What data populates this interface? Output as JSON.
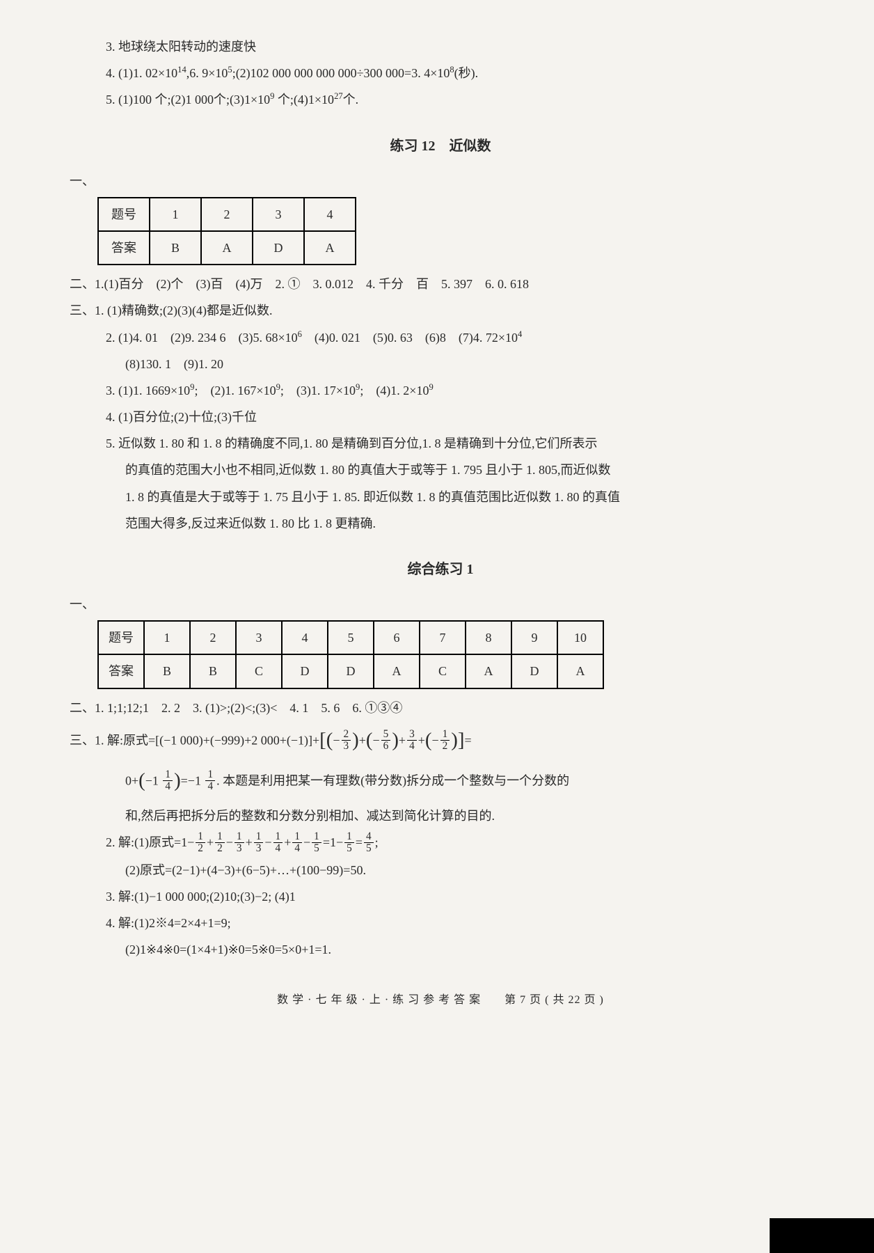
{
  "top": {
    "line3": "3. 地球绕太阳转动的速度快",
    "line4_a": "4.  (1)1. 02×10",
    "line4_b": ",6. 9×10",
    "line4_c": ";(2)102 000 000 000 000÷300 000=3. 4×10",
    "line4_d": "(秒).",
    "line5_a": "5. (1)100 个;(2)1 000个;(3)1×10",
    "line5_b": " 个;(4)1×10",
    "line5_c": "个.",
    "exp14": "14",
    "exp5": "5",
    "exp8": "8",
    "exp9": "9",
    "exp27": "27"
  },
  "sec12": {
    "title": "练习 12　近似数",
    "one": "一、",
    "table_header": "题号",
    "nums": [
      "1",
      "2",
      "3",
      "4"
    ],
    "ans_label": "答案",
    "answers": [
      "B",
      "A",
      "D",
      "A"
    ],
    "two": "二、1.(1)百分　(2)个　(3)百　(4)万　2. ①　3. 0.012　4. 千分　百　5. 397　6. 0. 618",
    "three1": "三、1. (1)精确数;(2)(3)(4)都是近似数.",
    "three2a": "2. (1)4. 01　(2)9. 234 6　(3)5. 68×10",
    "three2b": "　(4)0. 021　(5)0. 63　(6)8　(7)4. 72×10",
    "exp6": "6",
    "exp4": "4",
    "three2c": "   (8)130. 1　(9)1. 20",
    "three3a": "3. (1)1. 1669×10",
    "three3b": ";　(2)1. 167×10",
    "three3c": ";　(3)1. 17×10",
    "three3d": ";　(4)1. 2×10",
    "exp9": "9",
    "three4": "4. (1)百分位;(2)十位;(3)千位",
    "three5a": "5. 近似数 1. 80 和 1. 8 的精确度不同,1. 80 是精确到百分位,1. 8 是精确到十分位,它们所表示",
    "three5b": "的真值的范围大小也不相同,近似数 1. 80 的真值大于或等于 1. 795 且小于 1. 805,而近似数",
    "three5c": "1. 8 的真值是大于或等于 1. 75 且小于 1. 85. 即近似数 1. 8 的真值范围比近似数 1. 80 的真值",
    "three5d": "范围大得多,反过来近似数 1. 80 比 1. 8 更精确."
  },
  "comp1": {
    "title": "综合练习 1",
    "one": "一、",
    "table_header": "题号",
    "nums": [
      "1",
      "2",
      "3",
      "4",
      "5",
      "6",
      "7",
      "8",
      "9",
      "10"
    ],
    "ans_label": "答案",
    "answers": [
      "B",
      "B",
      "C",
      "D",
      "D",
      "A",
      "C",
      "A",
      "D",
      "A"
    ],
    "two": "二、1. 1;1;12;1　2. 2　3.  (1)>;(2)<;(3)<　4. 1　5. 6　6. ①③④",
    "three1_prefix": "三、1.  解:原式=[(−1 000)+(−999)+2 000+(−1)]+",
    "three1_mid1": "−",
    "three1_mid2": "+",
    "three1_mid3": "−",
    "three1_mid4": "+",
    "three1_mid5": "+",
    "three1_mid6": "−",
    "three1_suffix": "=",
    "f_2_3_n": "2",
    "f_2_3_d": "3",
    "f_5_6_n": "5",
    "f_5_6_d": "6",
    "f_3_4_n": "3",
    "f_3_4_d": "4",
    "f_1_2_n": "1",
    "f_1_2_d": "2",
    "three1b_a": "0+",
    "three1b_b": "−1",
    "three1b_c": "=−1",
    "three1b_d": ". 本题是利用把某一有理数(带分数)拆分成一个整数与一个分数的",
    "f_1_4_n": "1",
    "f_1_4_d": "4",
    "three1c": "和,然后再把拆分后的整数和分数分别相加、减达到简化计算的目的.",
    "three2_prefix": "2.  解:(1)原式=1−",
    "three2_mid": "+",
    "three2_eq": "=1−",
    "three2_eq2": "=",
    "three2_semicolon": ";",
    "f_1_3_n": "1",
    "f_1_3_d": "3",
    "f_1_5_n": "1",
    "f_1_5_d": "5",
    "f_4_5_n": "4",
    "f_4_5_d": "5",
    "three2b": "(2)原式=(2−1)+(4−3)+(6−5)+…+(100−99)=50.",
    "three3": "3.  解:(1)−1 000 000;(2)10;(3)−2; (4)1",
    "three4a": "4.  解:(1)2※4=2×4+1=9;",
    "three4b": "(2)1※4※0=(1×4+1)※0=5※0=5×0+1=1."
  },
  "footer": "数 学 · 七 年 级 · 上 · 练 习 参 考 答 案　　第 7 页 ( 共 22 页 )"
}
